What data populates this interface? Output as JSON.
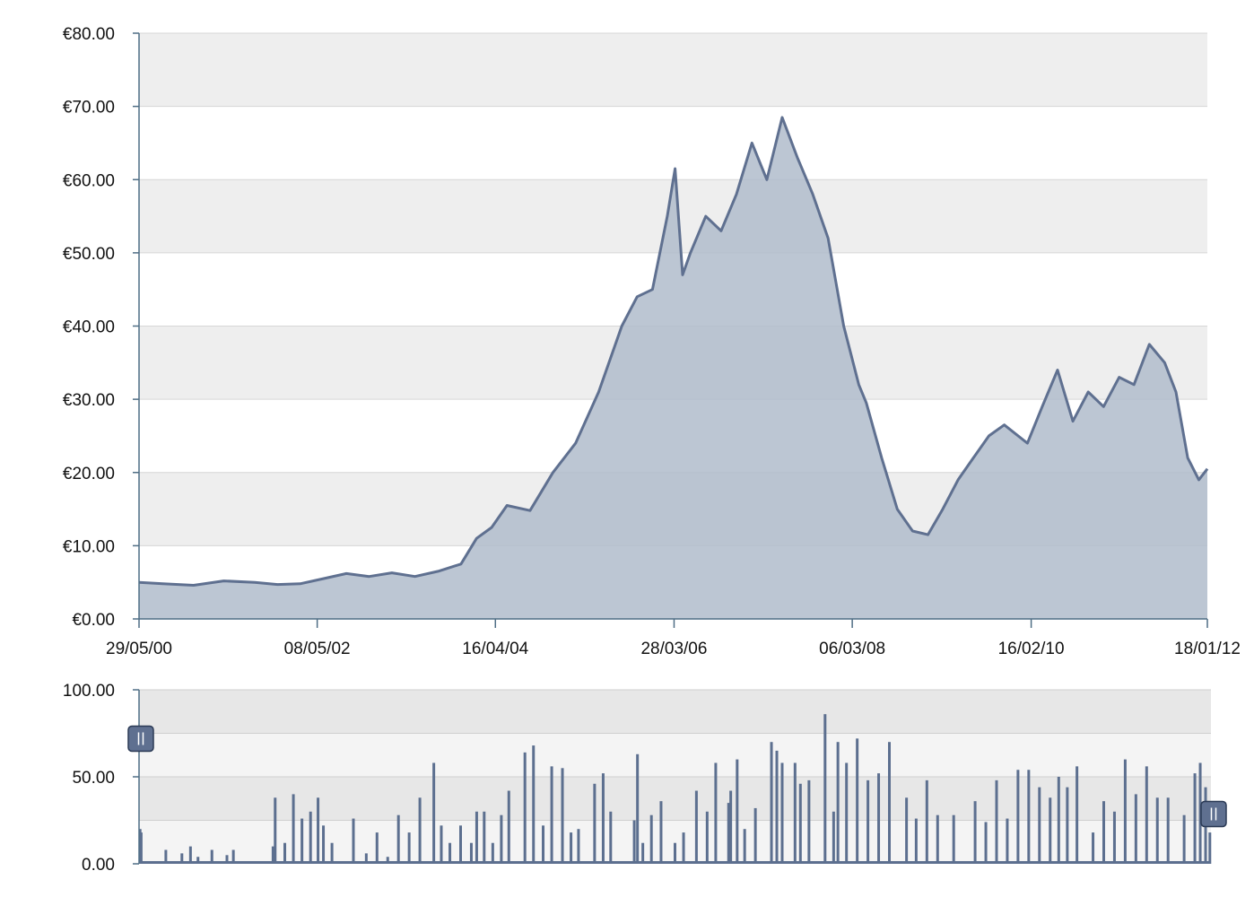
{
  "colors": {
    "band": "#eeeeee",
    "grid": "#d6d6d6",
    "axis": "#4f6e85",
    "line": "#5f7090",
    "area": "#b0bccb",
    "volume": "#5c6f8f",
    "handle_fill": "#5f7090",
    "handle_stroke": "#2b3a55"
  },
  "chart_data": [
    {
      "type": "area",
      "title": "",
      "xlabel": "",
      "ylabel": "",
      "ylim": [
        0,
        80
      ],
      "y_ticks": [
        0,
        10,
        20,
        30,
        40,
        50,
        60,
        70,
        80
      ],
      "y_tick_labels": [
        "€0.00",
        "€10.00",
        "€20.00",
        "€30.00",
        "€40.00",
        "€50.00",
        "€60.00",
        "€70.00",
        "€80.00"
      ],
      "x_range": [
        "2000-05-29",
        "2012-01-18"
      ],
      "x_ticks": [
        "2000-05-29",
        "2002-05-08",
        "2004-04-16",
        "2006-03-28",
        "2008-03-06",
        "2010-02-16",
        "2012-01-18"
      ],
      "x_tick_labels": [
        "29/05/00",
        "08/05/02",
        "16/04/04",
        "28/03/06",
        "06/03/08",
        "16/02/10",
        "18/01/12"
      ],
      "grid": true,
      "series": [
        {
          "x": [
            "2000-05-29",
            "2000-09-01",
            "2001-01-01",
            "2001-05-01",
            "2001-09-01",
            "2001-12-01",
            "2002-03-01",
            "2002-06-01",
            "2002-09-01",
            "2002-12-01",
            "2003-03-01",
            "2003-06-01",
            "2003-09-01",
            "2003-12-01",
            "2004-02-01",
            "2004-04-01",
            "2004-06-01",
            "2004-09-01",
            "2004-12-01",
            "2005-03-01",
            "2005-06-01",
            "2005-09-01",
            "2005-11-01",
            "2006-01-01",
            "2006-03-01",
            "2006-04-01",
            "2006-05-01",
            "2006-06-01",
            "2006-08-01",
            "2006-10-01",
            "2006-12-01",
            "2007-02-01",
            "2007-04-01",
            "2007-06-01",
            "2007-08-01",
            "2007-10-01",
            "2007-12-01",
            "2008-02-01",
            "2008-04-01",
            "2008-05-01",
            "2008-07-01",
            "2008-09-01",
            "2008-11-01",
            "2009-01-01",
            "2009-03-01",
            "2009-05-01",
            "2009-07-01",
            "2009-09-01",
            "2009-11-01",
            "2010-02-01",
            "2010-04-01",
            "2010-06-01",
            "2010-08-01",
            "2010-10-01",
            "2010-12-01",
            "2011-02-01",
            "2011-04-01",
            "2011-06-01",
            "2011-08-01",
            "2011-09-15",
            "2011-11-01",
            "2011-12-15",
            "2012-01-18"
          ],
          "y": [
            5.0,
            4.8,
            4.6,
            5.2,
            5.0,
            4.7,
            4.8,
            5.5,
            6.2,
            5.8,
            6.3,
            5.8,
            6.5,
            7.5,
            11.0,
            12.5,
            15.5,
            14.8,
            20.0,
            24.0,
            31.0,
            40.0,
            44.0,
            45.0,
            55.0,
            61.5,
            47.0,
            50.0,
            55.0,
            53.0,
            58.0,
            65.0,
            60.0,
            68.5,
            63.0,
            58.0,
            52.0,
            40.0,
            32.0,
            29.5,
            22.0,
            15.0,
            12.0,
            11.5,
            15.0,
            19.0,
            22.0,
            25.0,
            26.5,
            24.0,
            29.0,
            34.0,
            27.0,
            31.0,
            29.0,
            33.0,
            32.0,
            37.5,
            35.0,
            31.0,
            22.0,
            19.0,
            20.5
          ]
        }
      ]
    },
    {
      "type": "bar",
      "title": "",
      "xlabel": "",
      "ylabel": "",
      "ylim": [
        0,
        100
      ],
      "y_ticks": [
        0,
        50,
        100
      ],
      "y_tick_labels": [
        "0.00",
        "50.00",
        "100.00"
      ],
      "selected_range_fraction": [
        0.25,
        0.75
      ],
      "series": [
        {
          "x": [
            0.001,
            0.002,
            0.025,
            0.04,
            0.048,
            0.055,
            0.068,
            0.082,
            0.088,
            0.125,
            0.127,
            0.136,
            0.144,
            0.152,
            0.16,
            0.167,
            0.172,
            0.18,
            0.2,
            0.212,
            0.222,
            0.232,
            0.242,
            0.252,
            0.262,
            0.275,
            0.282,
            0.29,
            0.3,
            0.31,
            0.315,
            0.322,
            0.33,
            0.338,
            0.345,
            0.36,
            0.368,
            0.377,
            0.385,
            0.395,
            0.403,
            0.41,
            0.425,
            0.433,
            0.44,
            0.462,
            0.465,
            0.47,
            0.478,
            0.487,
            0.5,
            0.508,
            0.52,
            0.53,
            0.538,
            0.55,
            0.552,
            0.558,
            0.565,
            0.575,
            0.59,
            0.595,
            0.6,
            0.612,
            0.617,
            0.625,
            0.64,
            0.648,
            0.652,
            0.66,
            0.67,
            0.68,
            0.69,
            0.7,
            0.716,
            0.725,
            0.735,
            0.745,
            0.76,
            0.78,
            0.79,
            0.8,
            0.81,
            0.82,
            0.83,
            0.84,
            0.85,
            0.858,
            0.866,
            0.875,
            0.89,
            0.9,
            0.91,
            0.92,
            0.93,
            0.94,
            0.95,
            0.96,
            0.975,
            0.985,
            0.99,
            0.995,
            0.999
          ],
          "y": [
            20,
            18,
            8,
            6,
            10,
            4,
            8,
            5,
            8,
            10,
            38,
            12,
            40,
            26,
            30,
            38,
            22,
            12,
            26,
            6,
            18,
            4,
            28,
            18,
            38,
            58,
            22,
            12,
            22,
            12,
            30,
            30,
            12,
            28,
            42,
            64,
            68,
            22,
            56,
            55,
            18,
            20,
            46,
            52,
            30,
            25,
            63,
            12,
            28,
            36,
            12,
            18,
            42,
            30,
            58,
            35,
            42,
            60,
            20,
            32,
            70,
            65,
            58,
            58,
            46,
            48,
            86,
            30,
            70,
            58,
            72,
            48,
            52,
            70,
            38,
            26,
            48,
            28,
            28,
            36,
            24,
            48,
            26,
            54,
            54,
            44,
            38,
            50,
            44,
            56,
            18,
            36,
            30,
            60,
            40,
            56,
            38,
            38,
            28,
            52,
            58,
            44,
            18
          ]
        }
      ]
    }
  ]
}
